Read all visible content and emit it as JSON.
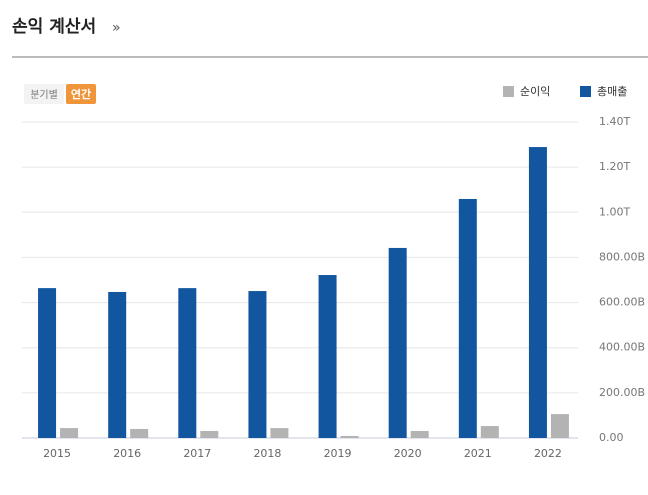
{
  "header": {
    "title": "손익 계산서",
    "more": "»"
  },
  "tabs": [
    "분기별",
    "연간"
  ],
  "chart_data": {
    "type": "bar",
    "categories": [
      "2015",
      "2016",
      "2017",
      "2018",
      "2019",
      "2020",
      "2021",
      "2022"
    ],
    "series": [
      {
        "name": "순이익",
        "color": "#b3b3b3",
        "values": [
          44,
          40,
          31,
          44,
          9,
          31,
          53,
          106
        ]
      },
      {
        "name": "총매출",
        "color": "#12569f",
        "values": [
          664,
          647,
          664,
          651,
          722,
          842,
          1059,
          1289
        ]
      }
    ],
    "ylim": [
      0,
      1400
    ],
    "yticks": [
      {
        "value": 0,
        "label": "0.00"
      },
      {
        "value": 200,
        "label": "200.00B"
      },
      {
        "value": 400,
        "label": "400.00B"
      },
      {
        "value": 600,
        "label": "600.00B"
      },
      {
        "value": 800,
        "label": "800.00B"
      },
      {
        "value": 1000,
        "label": "1.00T"
      },
      {
        "value": 1200,
        "label": "1.20T"
      },
      {
        "value": 1400,
        "label": "1.40T"
      }
    ],
    "grid": true
  }
}
